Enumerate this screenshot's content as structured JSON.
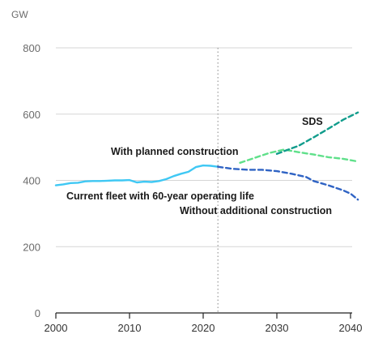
{
  "chart_data": {
    "type": "line",
    "unit_label": "GW",
    "xlim": [
      2000,
      2040
    ],
    "ylim": [
      0,
      800
    ],
    "x_ticks": [
      2000,
      2010,
      2020,
      2030,
      2040
    ],
    "y_ticks": [
      0,
      200,
      400,
      600,
      800
    ],
    "grid": "horizontal",
    "vertical_marker_x": 2022,
    "colors": {
      "current_fleet": "#3fc8f4",
      "without_additional": "#2f63c4",
      "with_planned": "#5fe08a",
      "sds": "#119c8c"
    },
    "annotations": {
      "sds": "SDS",
      "with_planned": "With planned construction",
      "current_fleet": "Current fleet with 60-year operating life",
      "without_additional": "Without additional construction"
    },
    "series": [
      {
        "key": "current_fleet",
        "style": "solid",
        "points": [
          [
            2000,
            385
          ],
          [
            2001,
            388
          ],
          [
            2002,
            392
          ],
          [
            2003,
            393
          ],
          [
            2004,
            397
          ],
          [
            2005,
            398
          ],
          [
            2006,
            398
          ],
          [
            2007,
            399
          ],
          [
            2008,
            400
          ],
          [
            2009,
            400
          ],
          [
            2010,
            401
          ],
          [
            2011,
            394
          ],
          [
            2012,
            396
          ],
          [
            2013,
            395
          ],
          [
            2014,
            398
          ],
          [
            2015,
            404
          ],
          [
            2016,
            413
          ],
          [
            2017,
            420
          ],
          [
            2018,
            426
          ],
          [
            2019,
            440
          ],
          [
            2020,
            445
          ],
          [
            2021,
            444
          ],
          [
            2022,
            441
          ]
        ]
      },
      {
        "key": "without_additional",
        "style": "dashed",
        "points": [
          [
            2022,
            441
          ],
          [
            2024,
            435
          ],
          [
            2026,
            432
          ],
          [
            2028,
            432
          ],
          [
            2030,
            428
          ],
          [
            2032,
            420
          ],
          [
            2034,
            410
          ],
          [
            2035,
            398
          ],
          [
            2037,
            385
          ],
          [
            2039,
            370
          ],
          [
            2040,
            360
          ],
          [
            2041,
            342
          ]
        ]
      },
      {
        "key": "with_planned",
        "style": "dashed",
        "points": [
          [
            2025,
            453
          ],
          [
            2027,
            468
          ],
          [
            2029,
            483
          ],
          [
            2031,
            493
          ],
          [
            2033,
            485
          ],
          [
            2035,
            478
          ],
          [
            2037,
            470
          ],
          [
            2039,
            465
          ],
          [
            2041,
            457
          ]
        ]
      },
      {
        "key": "sds",
        "style": "dashed",
        "points": [
          [
            2030,
            480
          ],
          [
            2033,
            505
          ],
          [
            2035,
            530
          ],
          [
            2037,
            556
          ],
          [
            2039,
            583
          ],
          [
            2041,
            605
          ]
        ]
      }
    ]
  }
}
